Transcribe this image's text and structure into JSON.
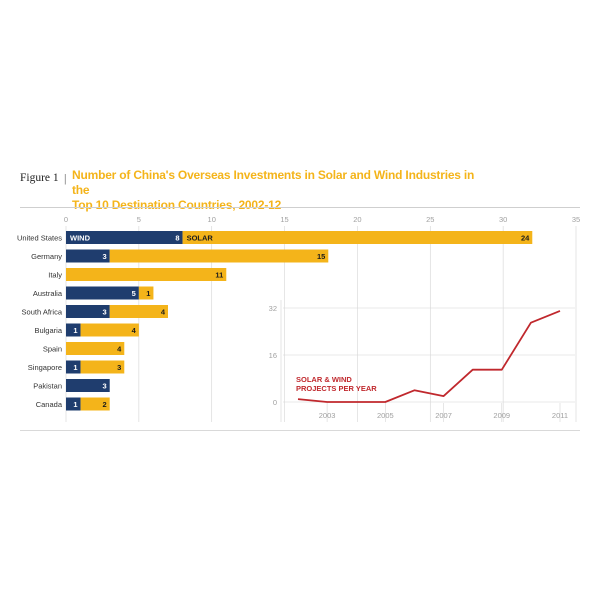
{
  "header": {
    "figure_label": "Figure 1",
    "separator": "|",
    "title_line1": "Number of China's Overseas Investments in Solar and Wind Industries in the",
    "title_line2": "Top 10 Destination Countries, 2002-12"
  },
  "colors": {
    "wind": "#1f3d6e",
    "solar": "#f4b41a",
    "line": "#c0282d",
    "grid": "#d5d5d5",
    "axis_text": "#a0a0a0"
  },
  "chart_data": [
    {
      "type": "bar",
      "stacked": true,
      "orientation": "horizontal",
      "categories": [
        "United States",
        "Germany",
        "Italy",
        "Australia",
        "South Africa",
        "Bulgaria",
        "Spain",
        "Singapore",
        "Pakistan",
        "Canada"
      ],
      "series": [
        {
          "name": "WIND",
          "values": [
            8,
            3,
            0,
            5,
            3,
            1,
            0,
            1,
            3,
            1
          ]
        },
        {
          "name": "SOLAR",
          "values": [
            24,
            15,
            11,
            1,
            4,
            4,
            4,
            3,
            0,
            2
          ]
        }
      ],
      "xlim": [
        0,
        35
      ],
      "xticks": [
        0,
        5,
        10,
        15,
        20,
        25,
        30,
        35
      ],
      "grid": true
    },
    {
      "type": "line",
      "annotation": [
        "SOLAR & WIND",
        "PROJECTS PER YEAR"
      ],
      "x": [
        2002,
        2003,
        2004,
        2005,
        2006,
        2007,
        2008,
        2009,
        2010,
        2011
      ],
      "series": [
        {
          "values": [
            1,
            0,
            0,
            0,
            4,
            2,
            11,
            11,
            27,
            31
          ]
        }
      ],
      "xticks": [
        2003,
        2005,
        2007,
        2009,
        2011
      ],
      "yticks": [
        0,
        16,
        32
      ],
      "ylim": [
        0,
        32
      ]
    }
  ]
}
